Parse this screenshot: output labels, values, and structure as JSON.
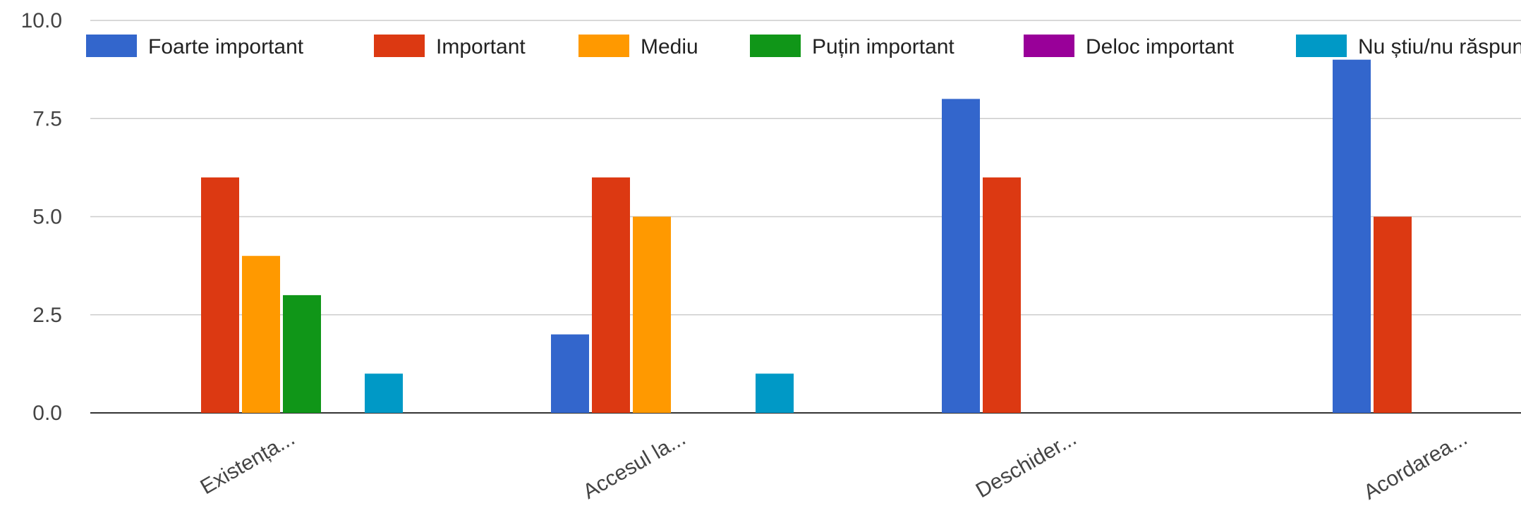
{
  "chart_data": {
    "type": "bar",
    "categories": [
      "Existența...",
      "Accesul la...",
      "Deschider...",
      "Acordarea..."
    ],
    "series": [
      {
        "name": "Foarte important",
        "color": "#3366cc",
        "values": [
          0,
          2,
          8,
          9
        ]
      },
      {
        "name": "Important",
        "color": "#dc3912",
        "values": [
          6,
          6,
          6,
          5
        ]
      },
      {
        "name": "Mediu",
        "color": "#ff9900",
        "values": [
          4,
          5,
          0,
          0
        ]
      },
      {
        "name": "Puțin important",
        "color": "#109618",
        "values": [
          3,
          0,
          0,
          0
        ]
      },
      {
        "name": "Deloc important",
        "color": "#990099",
        "values": [
          0,
          0,
          0,
          0
        ]
      },
      {
        "name": "Nu știu/nu răspund",
        "color": "#0099c6",
        "values": [
          1,
          1,
          0,
          0
        ]
      }
    ],
    "yticks": [
      "0.0",
      "2.5",
      "5.0",
      "7.5",
      "10.0"
    ],
    "ylim": [
      0,
      10
    ],
    "grid": true,
    "legend_position": "top"
  }
}
